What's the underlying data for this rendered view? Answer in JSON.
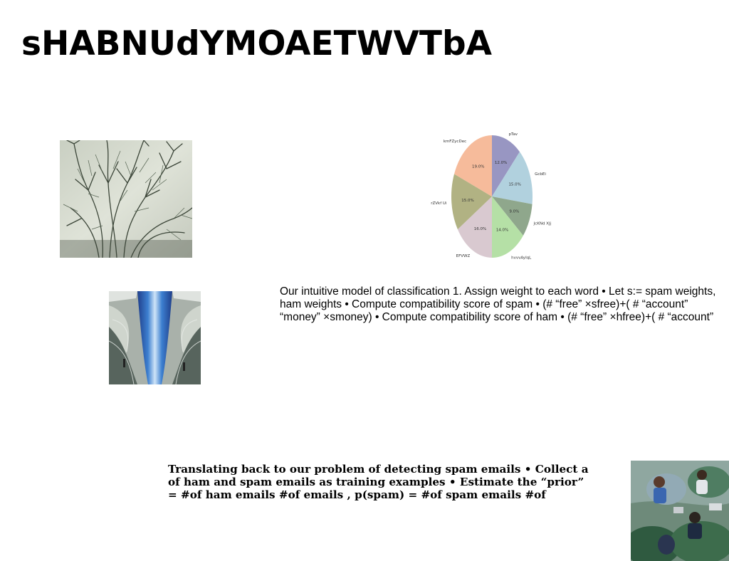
{
  "slide": {
    "title": "sHABNUdYMOAETWVTbA",
    "paragraph1": {
      "lines": [
        "Our intuitive model of classification 1. Assign weight to each word • Let s:= spam weights,",
        "ham weights • Compute compatibility score of spam • (# “free” ×sfree)+( # “account”",
        "“money” ×smoney) • Compute compatibility score of ham • (# “free” ×hfree)+( # “account”"
      ]
    },
    "paragraph2": {
      "lines": [
        "Translating back to our problem of detecting spam emails • Collect a",
        "of ham and spam emails as training examples • Estimate the “prior”",
        "= #of ham emails #of emails , p(spam) = #of spam emails #of"
      ]
    }
  },
  "chart_data": {
    "type": "pie",
    "slices": [
      {
        "label": "pTav",
        "value": 12.0,
        "display": "12.0%",
        "color": "#9896c2"
      },
      {
        "label": "GcbEi",
        "value": 15.0,
        "display": "15.0%",
        "color": "#b1d1de"
      },
      {
        "label": "JcKNd XJj",
        "value": 9.0,
        "display": "9.0%",
        "color": "#8fa78c"
      },
      {
        "label": "hvvvAyIqL",
        "value": 14.0,
        "display": "14.0%",
        "color": "#b5e0a6"
      },
      {
        "label": "EFVWZ",
        "value": 16.0,
        "display": "16.0%",
        "color": "#d9c9d0"
      },
      {
        "label": "rZVkf Ui",
        "value": 15.0,
        "display": "15.0%",
        "color": "#b1b283"
      },
      {
        "label": "kmFZycDec",
        "value": 19.0,
        "display": "19.0%",
        "color": "#f6bb9b"
      }
    ],
    "start_angle": "12 o'clock",
    "direction": "clockwise"
  }
}
